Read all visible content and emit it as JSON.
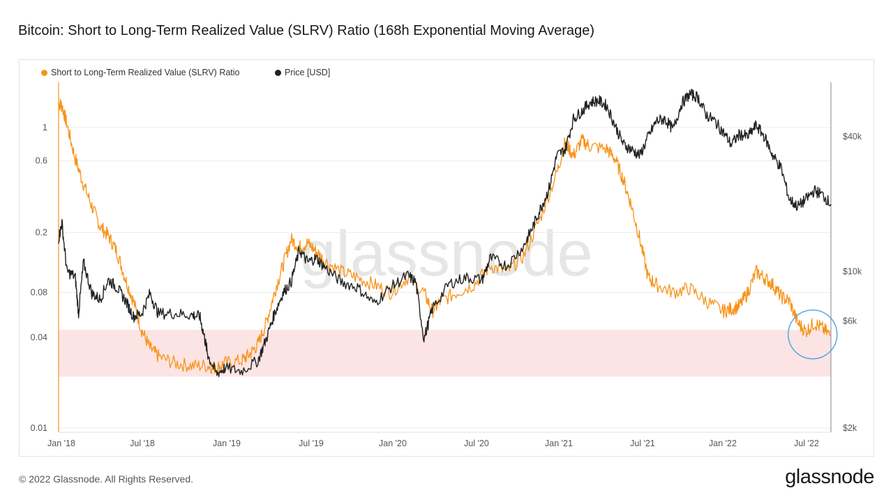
{
  "page": {
    "title": "Bitcoin: Short to Long-Term Realized Value (SLRV) Ratio (168h Exponential Moving Average)",
    "footer": "© 2022 Glassnode. All Rights Reserved.",
    "brand": "glassnode",
    "watermark": "glassnode"
  },
  "chart_data": {
    "type": "line",
    "title": "Bitcoin: Short to Long-Term Realized Value (SLRV) Ratio (168h Exponential Moving Average)",
    "xlabel": "",
    "x_ticks": [
      "Jan '18",
      "Jul '18",
      "Jan '19",
      "Jul '19",
      "Jan '20",
      "Jul '20",
      "Jan '21",
      "Jul '21",
      "Jan '22",
      "Jul '22"
    ],
    "x_range": [
      2018.0,
      2022.65
    ],
    "y_left": {
      "label": "",
      "scale": "log",
      "range": [
        0.01,
        2.0
      ],
      "ticks": [
        "0.01",
        "0.04",
        "0.08",
        "0.2",
        "0.6",
        "1"
      ],
      "tick_values": [
        0.01,
        0.04,
        0.08,
        0.2,
        0.6,
        1
      ]
    },
    "y_right": {
      "label": "",
      "scale": "log",
      "range": [
        2000,
        70000
      ],
      "ticks": [
        "$2k",
        "$6k",
        "$10k",
        "$40k"
      ],
      "tick_values": [
        2000,
        6000,
        10000,
        40000
      ]
    },
    "shaded_band": {
      "axis": "left",
      "from": 0.022,
      "to": 0.045,
      "color": "#fce4e4"
    },
    "highlight": {
      "x": 2022.54,
      "y_left": 0.042,
      "shape": "circle",
      "color": "#4aa3df"
    },
    "legend": {
      "position": "top-left"
    },
    "series": [
      {
        "name": "Short to Long-Term Realized Value (SLRV) Ratio",
        "axis": "left",
        "color": "#f7931a",
        "points": [
          [
            2018.0,
            1.45
          ],
          [
            2018.02,
            1.4
          ],
          [
            2018.05,
            1.05
          ],
          [
            2018.1,
            0.62
          ],
          [
            2018.15,
            0.42
          ],
          [
            2018.2,
            0.3
          ],
          [
            2018.25,
            0.22
          ],
          [
            2018.3,
            0.19
          ],
          [
            2018.35,
            0.15
          ],
          [
            2018.4,
            0.1
          ],
          [
            2018.45,
            0.07
          ],
          [
            2018.5,
            0.045
          ],
          [
            2018.55,
            0.034
          ],
          [
            2018.6,
            0.03
          ],
          [
            2018.7,
            0.027
          ],
          [
            2018.8,
            0.026
          ],
          [
            2018.9,
            0.026
          ],
          [
            2018.95,
            0.025
          ],
          [
            2019.0,
            0.027
          ],
          [
            2019.1,
            0.028
          ],
          [
            2019.15,
            0.031
          ],
          [
            2019.2,
            0.036
          ],
          [
            2019.25,
            0.05
          ],
          [
            2019.3,
            0.08
          ],
          [
            2019.35,
            0.12
          ],
          [
            2019.4,
            0.18
          ],
          [
            2019.45,
            0.16
          ],
          [
            2019.5,
            0.17
          ],
          [
            2019.55,
            0.15
          ],
          [
            2019.6,
            0.13
          ],
          [
            2019.7,
            0.11
          ],
          [
            2019.8,
            0.1
          ],
          [
            2019.9,
            0.09
          ],
          [
            2020.0,
            0.08
          ],
          [
            2020.1,
            0.1
          ],
          [
            2020.2,
            0.08
          ],
          [
            2020.25,
            0.06
          ],
          [
            2020.3,
            0.07
          ],
          [
            2020.4,
            0.08
          ],
          [
            2020.5,
            0.09
          ],
          [
            2020.6,
            0.12
          ],
          [
            2020.7,
            0.11
          ],
          [
            2020.8,
            0.14
          ],
          [
            2020.9,
            0.25
          ],
          [
            2021.0,
            0.5
          ],
          [
            2021.05,
            0.8
          ],
          [
            2021.1,
            0.65
          ],
          [
            2021.15,
            0.82
          ],
          [
            2021.2,
            0.75
          ],
          [
            2021.3,
            0.72
          ],
          [
            2021.35,
            0.62
          ],
          [
            2021.4,
            0.45
          ],
          [
            2021.45,
            0.3
          ],
          [
            2021.5,
            0.18
          ],
          [
            2021.55,
            0.1
          ],
          [
            2021.6,
            0.09
          ],
          [
            2021.7,
            0.08
          ],
          [
            2021.8,
            0.085
          ],
          [
            2021.9,
            0.07
          ],
          [
            2022.0,
            0.06
          ],
          [
            2022.05,
            0.062
          ],
          [
            2022.1,
            0.065
          ],
          [
            2022.15,
            0.08
          ],
          [
            2022.2,
            0.11
          ],
          [
            2022.25,
            0.1
          ],
          [
            2022.3,
            0.09
          ],
          [
            2022.35,
            0.075
          ],
          [
            2022.4,
            0.07
          ],
          [
            2022.45,
            0.05
          ],
          [
            2022.5,
            0.044
          ],
          [
            2022.55,
            0.05
          ],
          [
            2022.6,
            0.046
          ],
          [
            2022.65,
            0.041
          ]
        ]
      },
      {
        "name": "Price [USD]",
        "axis": "right",
        "color": "#222222",
        "points": [
          [
            2018.0,
            14000
          ],
          [
            2018.02,
            16500
          ],
          [
            2018.05,
            10000
          ],
          [
            2018.1,
            9500
          ],
          [
            2018.12,
            6500
          ],
          [
            2018.15,
            11000
          ],
          [
            2018.2,
            8000
          ],
          [
            2018.25,
            7500
          ],
          [
            2018.3,
            9200
          ],
          [
            2018.35,
            8500
          ],
          [
            2018.4,
            7500
          ],
          [
            2018.45,
            6300
          ],
          [
            2018.5,
            6500
          ],
          [
            2018.55,
            8000
          ],
          [
            2018.6,
            6500
          ],
          [
            2018.7,
            6500
          ],
          [
            2018.8,
            6400
          ],
          [
            2018.85,
            6300
          ],
          [
            2018.88,
            5000
          ],
          [
            2018.9,
            4200
          ],
          [
            2018.95,
            3500
          ],
          [
            2019.0,
            3700
          ],
          [
            2019.1,
            3600
          ],
          [
            2019.2,
            4000
          ],
          [
            2019.25,
            5000
          ],
          [
            2019.3,
            6500
          ],
          [
            2019.35,
            8000
          ],
          [
            2019.4,
            9000
          ],
          [
            2019.45,
            12500
          ],
          [
            2019.5,
            11000
          ],
          [
            2019.55,
            11500
          ],
          [
            2019.6,
            10500
          ],
          [
            2019.7,
            9000
          ],
          [
            2019.8,
            8500
          ],
          [
            2019.9,
            7200
          ],
          [
            2020.0,
            8500
          ],
          [
            2020.1,
            9600
          ],
          [
            2020.15,
            9000
          ],
          [
            2020.2,
            5000
          ],
          [
            2020.25,
            6800
          ],
          [
            2020.35,
            8800
          ],
          [
            2020.45,
            9400
          ],
          [
            2020.55,
            9200
          ],
          [
            2020.6,
            11500
          ],
          [
            2020.7,
            10600
          ],
          [
            2020.8,
            13000
          ],
          [
            2020.85,
            15500
          ],
          [
            2020.9,
            19000
          ],
          [
            2020.95,
            23000
          ],
          [
            2021.0,
            33000
          ],
          [
            2021.05,
            35000
          ],
          [
            2021.1,
            48000
          ],
          [
            2021.15,
            52000
          ],
          [
            2021.2,
            57000
          ],
          [
            2021.25,
            58000
          ],
          [
            2021.3,
            55000
          ],
          [
            2021.35,
            45000
          ],
          [
            2021.4,
            37000
          ],
          [
            2021.45,
            35000
          ],
          [
            2021.5,
            33000
          ],
          [
            2021.55,
            40000
          ],
          [
            2021.6,
            47000
          ],
          [
            2021.65,
            48000
          ],
          [
            2021.7,
            43000
          ],
          [
            2021.75,
            56000
          ],
          [
            2021.8,
            62000
          ],
          [
            2021.85,
            60000
          ],
          [
            2021.9,
            50000
          ],
          [
            2021.95,
            47000
          ],
          [
            2022.0,
            42000
          ],
          [
            2022.05,
            37000
          ],
          [
            2022.1,
            41000
          ],
          [
            2022.15,
            40000
          ],
          [
            2022.2,
            45000
          ],
          [
            2022.25,
            40000
          ],
          [
            2022.3,
            33000
          ],
          [
            2022.35,
            29000
          ],
          [
            2022.4,
            21000
          ],
          [
            2022.45,
            19500
          ],
          [
            2022.5,
            21000
          ],
          [
            2022.55,
            23000
          ],
          [
            2022.6,
            22000
          ],
          [
            2022.65,
            20000
          ]
        ]
      }
    ]
  }
}
